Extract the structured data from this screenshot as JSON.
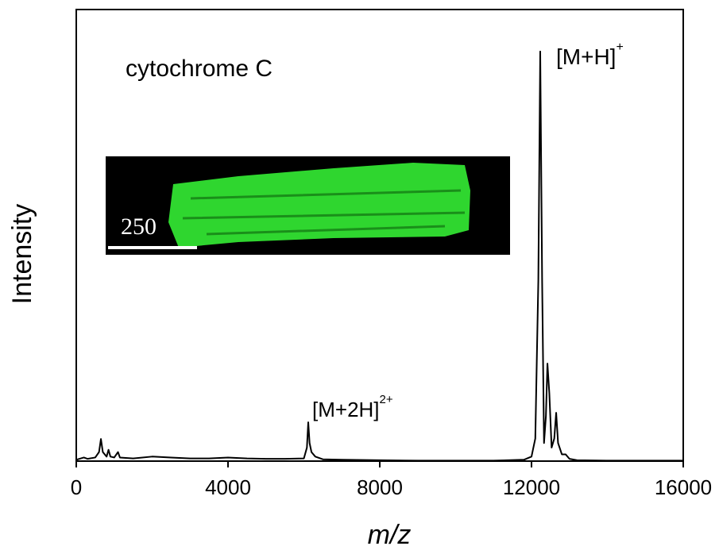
{
  "chart_data": {
    "type": "line",
    "x_label": "m/z",
    "y_label": "Intensity",
    "annotations": [
      {
        "text": "cytochrome C"
      },
      {
        "text": "[M+H]",
        "sup": "+"
      },
      {
        "text": "[M+2H]",
        "sup": "2+"
      },
      {
        "text": "250"
      }
    ],
    "x": [
      0,
      200,
      300,
      500,
      600,
      650,
      700,
      800,
      850,
      900,
      1000,
      1100,
      1150,
      1500,
      2000,
      2500,
      3000,
      3500,
      4000,
      4500,
      5000,
      5500,
      6000,
      6080,
      6115,
      6150,
      6200,
      6300,
      6500,
      7000,
      8000,
      9000,
      10000,
      11000,
      11800,
      12000,
      12100,
      12180,
      12230,
      12280,
      12330,
      12380,
      12420,
      12470,
      12530,
      12600,
      12650,
      12700,
      12800,
      12900,
      13000,
      13200,
      14000,
      16000
    ],
    "series": [
      {
        "color": "#000000",
        "values": [
          0.3,
          0.8,
          0.5,
          0.8,
          2,
          4.9,
          2,
          1,
          2.5,
          1,
          0.8,
          2,
          0.8,
          0.6,
          1,
          0.8,
          0.6,
          0.6,
          0.8,
          0.6,
          0.5,
          0.5,
          0.6,
          3,
          8.6,
          4,
          2,
          1,
          0.4,
          0.3,
          0.2,
          0.1,
          0.1,
          0.1,
          0.3,
          1,
          5,
          40,
          90.7,
          40,
          4,
          10,
          21.6,
          15,
          3,
          5,
          10.7,
          4,
          1.5,
          1.5,
          0.5,
          0.2,
          0.1,
          0.1
        ]
      }
    ],
    "xlim": [
      0,
      16000
    ],
    "xticks": [
      0,
      4000,
      8000,
      12000,
      16000
    ],
    "ylim": [
      0,
      100
    ]
  }
}
